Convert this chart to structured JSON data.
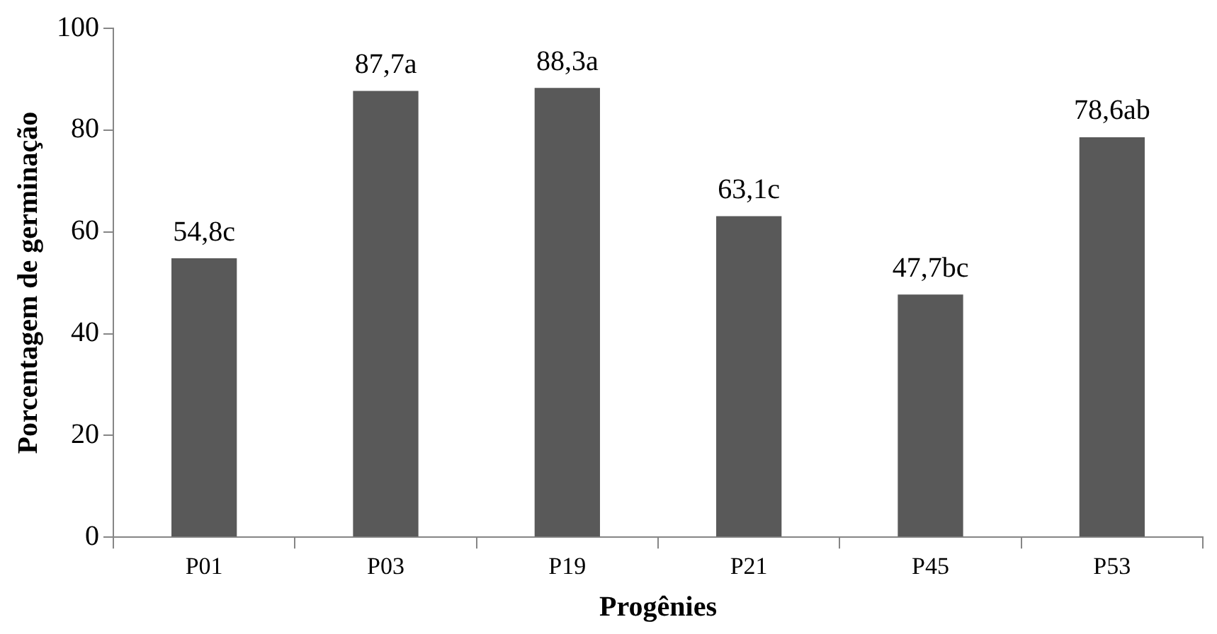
{
  "chart_data": {
    "type": "bar",
    "xlabel": "Progênies",
    "ylabel": "Porcentagem de germinação",
    "categories": [
      "P01",
      "P03",
      "P19",
      "P21",
      "P45",
      "P53"
    ],
    "values": [
      54.8,
      87.7,
      88.3,
      63.1,
      47.7,
      78.6
    ],
    "value_labels": [
      "54,8c",
      "87,7a",
      "88,3a",
      "63,1c",
      "47,7bc",
      "78,6ab"
    ],
    "color": "#595959",
    "ylim": [
      0,
      100
    ],
    "yticks": [
      0,
      20,
      40,
      60,
      80,
      100
    ],
    "grid": false,
    "legend": false
  }
}
